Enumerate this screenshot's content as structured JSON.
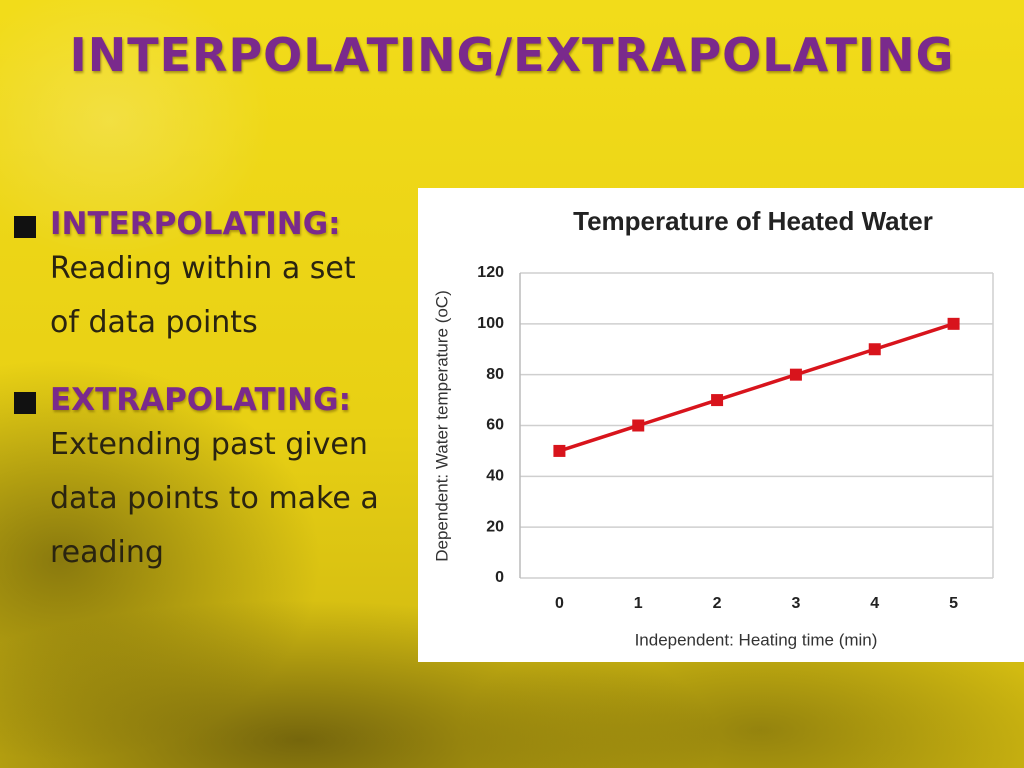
{
  "slide": {
    "title": "INTERPOLATING/EXTRAPOLATING",
    "bullets": [
      {
        "term": "INTERPOLATING:",
        "text": "Reading within a set of data points"
      },
      {
        "term": "EXTRAPOLATING:",
        "text": "Extending past given data points to make a reading"
      }
    ]
  },
  "chart_data": {
    "type": "line",
    "title": "Temperature of Heated Water",
    "x_label": "Independent:   Heating time (min)",
    "y_label": "Dependent:  Water temperature (oC)",
    "categories": [
      "0",
      "1",
      "2",
      "3",
      "4",
      "5"
    ],
    "values": [
      50,
      60,
      70,
      80,
      90,
      100
    ],
    "color": "#d8141c",
    "ylim": [
      0,
      120
    ],
    "yticks": [
      0,
      20,
      40,
      60,
      80,
      100,
      120
    ],
    "grid": true
  }
}
